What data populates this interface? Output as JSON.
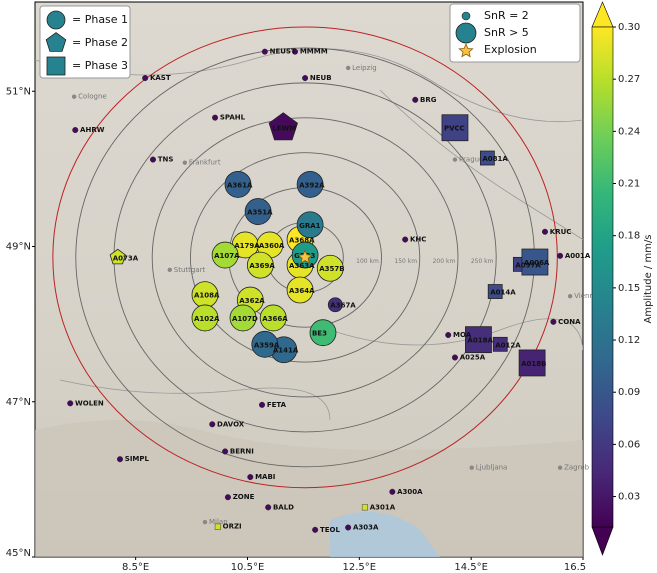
{
  "chart_data": {
    "type": "map",
    "xlim": [
      6.7,
      16.5
    ],
    "ylim": [
      45,
      52.15
    ],
    "xticks": [
      {
        "value": 8.5,
        "label": "8.5°E"
      },
      {
        "value": 10.5,
        "label": "10.5°E"
      },
      {
        "value": 12.5,
        "label": "12.5°E"
      },
      {
        "value": 14.5,
        "label": "14.5°E"
      },
      {
        "value": 16.5,
        "label": "16.5"
      }
    ],
    "yticks": [
      {
        "value": 45,
        "label": "45°N"
      },
      {
        "value": 47,
        "label": "47°N"
      },
      {
        "value": 49,
        "label": "49°N"
      },
      {
        "value": 51,
        "label": "51°N"
      }
    ],
    "colormap": "viridis",
    "clim": [
      0.0125,
      0.3
    ],
    "colorbar_label": "Amplitude / mm/s",
    "colorbar_ticks": [
      {
        "value": 0.03,
        "label": "0.03"
      },
      {
        "value": 0.06,
        "label": "0.06"
      },
      {
        "value": 0.09,
        "label": "0.09"
      },
      {
        "value": 0.12,
        "label": "0.12"
      },
      {
        "value": 0.15,
        "label": "0.15"
      },
      {
        "value": 0.18,
        "label": "0.18"
      },
      {
        "value": 0.21,
        "label": "0.21"
      },
      {
        "value": 0.24,
        "label": "0.24"
      },
      {
        "value": 0.27,
        "label": "0.27"
      },
      {
        "value": 0.3,
        "label": "0.30"
      }
    ],
    "phase_legend": [
      "= Phase 1",
      "= Phase 2",
      "= Phase 3"
    ],
    "snr_legend": [
      "SnR = 2",
      "SnR > 5",
      "Explosion"
    ],
    "explosion": {
      "lon": 11.53,
      "lat": 48.86
    },
    "rings_km": [
      50,
      100,
      150,
      200,
      250,
      300
    ],
    "ring_labels": [
      "50 km",
      "100 km",
      "150 km",
      "200 km",
      "250 km"
    ],
    "outer_ring_km": 330,
    "cities": [
      {
        "name": "Frankfurt",
        "lon": 9.38,
        "lat": 50.08
      },
      {
        "name": "Stuttgart",
        "lon": 9.11,
        "lat": 48.7
      },
      {
        "name": "Cologne",
        "lon": 7.4,
        "lat": 50.93
      },
      {
        "name": "Leipzig",
        "lon": 12.3,
        "lat": 51.3
      },
      {
        "name": "Prague",
        "lon": 14.21,
        "lat": 50.12
      },
      {
        "name": "Vienna",
        "lon": 16.27,
        "lat": 48.36
      },
      {
        "name": "Zagreb",
        "lon": 16.09,
        "lat": 46.15
      },
      {
        "name": "Ljubljana",
        "lon": 14.51,
        "lat": 46.15
      },
      {
        "name": "Milan",
        "lon": 9.74,
        "lat": 45.45
      }
    ],
    "stations": [
      {
        "name": "A351A",
        "lon": 10.69,
        "lat": 49.45,
        "amplitude": 0.1,
        "phase": 1,
        "snr": 6
      },
      {
        "name": "A361A",
        "lon": 10.33,
        "lat": 49.8,
        "amplitude": 0.1,
        "phase": 1,
        "snr": 6
      },
      {
        "name": "A392A",
        "lon": 11.62,
        "lat": 49.8,
        "amplitude": 0.1,
        "phase": 1,
        "snr": 6
      },
      {
        "name": "A179A",
        "lon": 10.46,
        "lat": 49.02,
        "amplitude": 0.29,
        "phase": 1,
        "snr": 6
      },
      {
        "name": "A360A",
        "lon": 10.9,
        "lat": 49.02,
        "amplitude": 0.29,
        "phase": 1,
        "snr": 6
      },
      {
        "name": "A368A",
        "lon": 11.44,
        "lat": 49.09,
        "amplitude": 0.3,
        "phase": 1,
        "snr": 6
      },
      {
        "name": "A369A",
        "lon": 10.73,
        "lat": 48.76,
        "amplitude": 0.28,
        "phase": 1,
        "snr": 6
      },
      {
        "name": "A363A",
        "lon": 11.44,
        "lat": 48.76,
        "amplitude": 0.29,
        "phase": 1,
        "snr": 6
      },
      {
        "name": "A357B",
        "lon": 11.98,
        "lat": 48.72,
        "amplitude": 0.28,
        "phase": 1,
        "snr": 6
      },
      {
        "name": "A364A",
        "lon": 11.44,
        "lat": 48.44,
        "amplitude": 0.29,
        "phase": 1,
        "snr": 6
      },
      {
        "name": "A362A",
        "lon": 10.55,
        "lat": 48.31,
        "amplitude": 0.28,
        "phase": 1,
        "snr": 6
      },
      {
        "name": "A107A",
        "lon": 10.1,
        "lat": 48.89,
        "amplitude": 0.26,
        "phase": 1,
        "snr": 6
      },
      {
        "name": "A108A",
        "lon": 9.74,
        "lat": 48.38,
        "amplitude": 0.28,
        "phase": 1,
        "snr": 6
      },
      {
        "name": "A102A",
        "lon": 9.74,
        "lat": 48.08,
        "amplitude": 0.27,
        "phase": 1,
        "snr": 6
      },
      {
        "name": "A107D",
        "lon": 10.42,
        "lat": 48.08,
        "amplitude": 0.26,
        "phase": 1,
        "snr": 6
      },
      {
        "name": "A366A",
        "lon": 10.96,
        "lat": 48.08,
        "amplitude": 0.27,
        "phase": 1,
        "snr": 6
      },
      {
        "name": "BE3",
        "lon": 11.85,
        "lat": 47.89,
        "amplitude": 0.21,
        "phase": 1,
        "snr": 6
      },
      {
        "name": "A367A",
        "lon": 12.07,
        "lat": 48.25,
        "amplitude": 0.05,
        "phase": 1,
        "snr": 2
      },
      {
        "name": "A141A",
        "lon": 11.15,
        "lat": 47.67,
        "amplitude": 0.11,
        "phase": 1,
        "snr": 6
      },
      {
        "name": "A359A",
        "lon": 10.81,
        "lat": 47.74,
        "amplitude": 0.11,
        "phase": 1,
        "snr": 6
      },
      {
        "name": "GRB3",
        "lon": 11.53,
        "lat": 48.89,
        "amplitude": 0.17,
        "phase": 1,
        "snr": 6
      },
      {
        "name": "GRA1",
        "lon": 11.62,
        "lat": 49.28,
        "amplitude": 0.13,
        "phase": 1,
        "snr": 6
      },
      {
        "name": "LEWM",
        "lon": 11.14,
        "lat": 50.53,
        "amplitude": 0.02,
        "phase": 2,
        "snr": 6
      },
      {
        "name": "A073A",
        "lon": 8.18,
        "lat": 48.86,
        "amplitude": 0.28,
        "phase": 2,
        "snr": 2
      },
      {
        "name": "PVCC",
        "lon": 14.21,
        "lat": 50.53,
        "amplitude": 0.07,
        "phase": 3,
        "snr": 6
      },
      {
        "name": "A081A",
        "lon": 14.79,
        "lat": 50.14,
        "amplitude": 0.08,
        "phase": 3,
        "snr": 2
      },
      {
        "name": "A006A",
        "lon": 15.64,
        "lat": 48.8,
        "amplitude": 0.09,
        "phase": 3,
        "snr": 6
      },
      {
        "name": "A097A",
        "lon": 15.38,
        "lat": 48.77,
        "amplitude": 0.07,
        "phase": 3,
        "snr": 2
      },
      {
        "name": "A014A",
        "lon": 14.93,
        "lat": 48.42,
        "amplitude": 0.08,
        "phase": 3,
        "snr": 2
      },
      {
        "name": "A012A",
        "lon": 15.02,
        "lat": 47.74,
        "amplitude": 0.05,
        "phase": 3,
        "snr": 2
      },
      {
        "name": "A018A",
        "lon": 14.63,
        "lat": 47.8,
        "amplitude": 0.05,
        "phase": 3,
        "snr": 6
      },
      {
        "name": "A018B",
        "lon": 15.59,
        "lat": 47.5,
        "amplitude": 0.04,
        "phase": 3,
        "snr": 6
      },
      {
        "name": "ORZI",
        "lon": 9.97,
        "lat": 45.39,
        "amplitude": 0.28,
        "phase": 3,
        "snr": 1
      },
      {
        "name": "A301A",
        "lon": 12.6,
        "lat": 45.64,
        "amplitude": 0.28,
        "phase": 3,
        "snr": 1
      },
      {
        "name": "TNS",
        "lon": 8.81,
        "lat": 50.12,
        "amplitude": 0.02,
        "phase": 1,
        "snr": 1
      },
      {
        "name": "AHRW",
        "lon": 7.42,
        "lat": 50.5,
        "amplitude": 0.02,
        "phase": 1,
        "snr": 1
      },
      {
        "name": "KAST",
        "lon": 8.67,
        "lat": 51.17,
        "amplitude": 0.02,
        "phase": 1,
        "snr": 1
      },
      {
        "name": "SPAHL",
        "lon": 9.92,
        "lat": 50.66,
        "amplitude": 0.02,
        "phase": 1,
        "snr": 1
      },
      {
        "name": "NEUST",
        "lon": 10.81,
        "lat": 51.51,
        "amplitude": 0.02,
        "phase": 1,
        "snr": 1
      },
      {
        "name": "MMMM",
        "lon": 11.35,
        "lat": 51.51,
        "amplitude": 0.02,
        "phase": 1,
        "snr": 1
      },
      {
        "name": "NEUB",
        "lon": 11.53,
        "lat": 51.17,
        "amplitude": 0.02,
        "phase": 1,
        "snr": 1
      },
      {
        "name": "BRG",
        "lon": 13.5,
        "lat": 50.89,
        "amplitude": 0.02,
        "phase": 1,
        "snr": 1
      },
      {
        "name": "KHC",
        "lon": 13.32,
        "lat": 49.09,
        "amplitude": 0.02,
        "phase": 1,
        "snr": 1
      },
      {
        "name": "MOA",
        "lon": 14.09,
        "lat": 47.86,
        "amplitude": 0.02,
        "phase": 1,
        "snr": 1
      },
      {
        "name": "ZONE",
        "lon": 10.15,
        "lat": 45.77,
        "amplitude": 0.02,
        "phase": 1,
        "snr": 1
      },
      {
        "name": "TEOL",
        "lon": 11.71,
        "lat": 45.35,
        "amplitude": 0.02,
        "phase": 1,
        "snr": 1
      },
      {
        "name": "A303A",
        "lon": 12.3,
        "lat": 45.38,
        "amplitude": 0.02,
        "phase": 1,
        "snr": 1
      },
      {
        "name": "A300A",
        "lon": 13.09,
        "lat": 45.84,
        "amplitude": 0.02,
        "phase": 1,
        "snr": 1
      },
      {
        "name": "MABI",
        "lon": 10.55,
        "lat": 46.03,
        "amplitude": 0.02,
        "phase": 1,
        "snr": 1
      },
      {
        "name": "BERNI",
        "lon": 10.1,
        "lat": 46.36,
        "amplitude": 0.02,
        "phase": 1,
        "snr": 1
      },
      {
        "name": "DAVOX",
        "lon": 9.87,
        "lat": 46.71,
        "amplitude": 0.02,
        "phase": 1,
        "snr": 1
      },
      {
        "name": "WOLEN",
        "lon": 7.33,
        "lat": 46.98,
        "amplitude": 0.02,
        "phase": 1,
        "snr": 1
      },
      {
        "name": "SIMPL",
        "lon": 8.22,
        "lat": 46.26,
        "amplitude": 0.02,
        "phase": 1,
        "snr": 1
      },
      {
        "name": "FETA",
        "lon": 10.76,
        "lat": 46.96,
        "amplitude": 0.02,
        "phase": 1,
        "snr": 1
      },
      {
        "name": "BALD",
        "lon": 10.87,
        "lat": 45.64,
        "amplitude": 0.02,
        "phase": 1,
        "snr": 1
      },
      {
        "name": "A025A",
        "lon": 14.21,
        "lat": 47.57,
        "amplitude": 0.02,
        "phase": 1,
        "snr": 1
      },
      {
        "name": "CONA",
        "lon": 15.97,
        "lat": 48.03,
        "amplitude": 0.02,
        "phase": 1,
        "snr": 1
      },
      {
        "name": "KRUC",
        "lon": 15.82,
        "lat": 49.19,
        "amplitude": 0.02,
        "phase": 1,
        "snr": 1
      },
      {
        "name": "A001A",
        "lon": 16.09,
        "lat": 48.88,
        "amplitude": 0.02,
        "phase": 1,
        "snr": 1
      }
    ]
  }
}
